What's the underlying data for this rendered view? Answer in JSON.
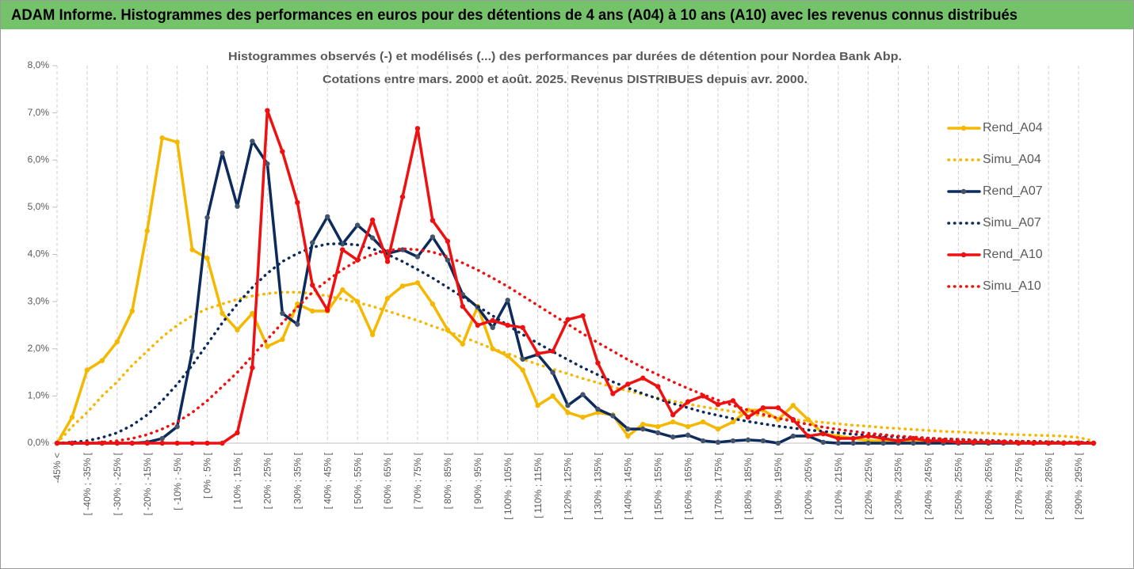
{
  "header": {
    "title": "ADAM Informe. Histogrammes des performances en euros pour des détentions de 4 ans (A04) à 10 ans (A10) avec les revenus connus distribués"
  },
  "chart_data": {
    "type": "line",
    "title": "Histogrammes observés (-) et modélisés (...) des performances par durées de détention pour Nordea Bank Abp.",
    "subtitle": "Cotations entre mars. 2000 et août. 2025. Revenus DISTRIBUES depuis avr. 2000.",
    "categories": [
      "-45% <",
      null,
      "[ -40% ; -35% [",
      null,
      "[ -30% ; -25% [",
      null,
      "[ -20% ; -15% [",
      null,
      "[ -10% ; -5% [",
      null,
      "[ 0% ; 5% [",
      null,
      "[ 10% ; 15% [",
      null,
      "[ 20% ; 25% [",
      null,
      "[ 30% ; 35% [",
      null,
      "[ 40% ; 45% [",
      null,
      "[ 50% ; 55% [",
      null,
      "[ 60% ; 65% [",
      null,
      "[ 70% ; 75% [",
      null,
      "[ 80% ; 85% [",
      null,
      "[ 90% ; 95% [",
      null,
      "[ 100% ; 105% [",
      null,
      "[ 110% ; 115% [",
      null,
      "[ 120% ; 125% [",
      null,
      "[ 130% ; 135% [",
      null,
      "[ 140% ; 145% [",
      null,
      "[ 150% ; 155% [",
      null,
      "[ 160% ; 165% [",
      null,
      "[ 170% ; 175% [",
      null,
      "[ 180% ; 185% [",
      null,
      "[ 190% ; 195% [",
      null,
      "[ 200% ; 205% [",
      null,
      "[ 210% ; 215% [",
      null,
      "[ 220% ; 225% [",
      null,
      "[ 230% ; 235% [",
      null,
      "[ 240% ; 245% [",
      null,
      "[ 250% ; 255% [",
      null,
      "[ 260% ; 265% [",
      null,
      "[ 270% ; 275% [",
      null,
      "[ 280% ; 285% [",
      null,
      "[ 290% ; 295% [",
      null
    ],
    "series": [
      {
        "name": "Rend_A04",
        "color": "#f5b800",
        "line_style": "solid",
        "markers": true,
        "values": [
          0,
          0.55,
          1.55,
          1.75,
          2.15,
          2.8,
          4.5,
          6.47,
          6.38,
          4.1,
          3.92,
          2.75,
          2.4,
          2.75,
          2.05,
          2.2,
          2.95,
          2.8,
          2.8,
          3.25,
          3.0,
          2.3,
          3.07,
          3.33,
          3.4,
          2.95,
          2.4,
          2.1,
          2.9,
          2.0,
          1.85,
          1.55,
          0.8,
          1.0,
          0.65,
          0.55,
          0.65,
          0.6,
          0.15,
          0.4,
          0.35,
          0.45,
          0.35,
          0.45,
          0.3,
          0.45,
          0.7,
          0.7,
          0.5,
          0.8,
          0.5,
          0.2,
          0.15,
          0.1,
          0.05,
          0.05,
          0.05,
          0.03,
          0.03,
          0.02,
          0.02,
          0.02,
          0.02,
          0.01,
          0.01,
          0.01,
          0.01,
          0.01,
          0.01,
          0
        ]
      },
      {
        "name": "Simu_A04",
        "color": "#f5b800",
        "line_style": "dotted",
        "markers": false,
        "values": [
          0,
          0.35,
          0.65,
          1.0,
          1.3,
          1.65,
          1.95,
          2.25,
          2.5,
          2.7,
          2.85,
          2.95,
          3.05,
          3.12,
          3.17,
          3.2,
          3.2,
          3.17,
          3.12,
          3.05,
          2.98,
          2.9,
          2.8,
          2.7,
          2.6,
          2.48,
          2.37,
          2.25,
          2.13,
          2.0,
          1.9,
          1.78,
          1.67,
          1.57,
          1.47,
          1.37,
          1.28,
          1.19,
          1.11,
          1.03,
          0.96,
          0.89,
          0.83,
          0.77,
          0.72,
          0.67,
          0.62,
          0.58,
          0.54,
          0.5,
          0.47,
          0.44,
          0.41,
          0.38,
          0.36,
          0.33,
          0.31,
          0.29,
          0.27,
          0.25,
          0.24,
          0.22,
          0.21,
          0.19,
          0.18,
          0.17,
          0.16,
          0.15,
          0.12,
          0.05
        ]
      },
      {
        "name": "Rend_A07",
        "color": "#0d2a5c",
        "line_style": "solid",
        "markers": true,
        "values": [
          0,
          0,
          0,
          0,
          0,
          0,
          0.02,
          0.1,
          0.35,
          1.95,
          4.78,
          6.15,
          5.02,
          6.4,
          5.92,
          2.75,
          2.52,
          4.25,
          4.8,
          4.22,
          4.62,
          4.35,
          4.02,
          4.1,
          3.95,
          4.37,
          3.88,
          3.15,
          2.88,
          2.45,
          3.03,
          1.78,
          1.88,
          1.5,
          0.8,
          1.03,
          0.72,
          0.58,
          0.3,
          0.3,
          0.22,
          0.13,
          0.17,
          0.05,
          0.02,
          0.05,
          0.07,
          0.05,
          0,
          0.15,
          0.15,
          0.02,
          0,
          0,
          0,
          0,
          0,
          0,
          0,
          0,
          0,
          0,
          0,
          0,
          0,
          0,
          0,
          0,
          0,
          0
        ]
      },
      {
        "name": "Simu_A07",
        "color": "#0d2a5c",
        "line_style": "dotted",
        "markers": false,
        "values": [
          0,
          0.02,
          0.05,
          0.12,
          0.22,
          0.38,
          0.6,
          0.9,
          1.25,
          1.65,
          2.1,
          2.55,
          2.95,
          3.3,
          3.6,
          3.85,
          4.02,
          4.15,
          4.22,
          4.23,
          4.2,
          4.12,
          4.0,
          3.85,
          3.68,
          3.5,
          3.3,
          3.1,
          2.9,
          2.7,
          2.5,
          2.3,
          2.12,
          1.94,
          1.77,
          1.6,
          1.45,
          1.3,
          1.17,
          1.05,
          0.94,
          0.84,
          0.75,
          0.66,
          0.59,
          0.52,
          0.46,
          0.41,
          0.36,
          0.32,
          0.28,
          0.25,
          0.22,
          0.19,
          0.17,
          0.15,
          0.13,
          0.11,
          0.1,
          0.09,
          0.08,
          0.07,
          0.06,
          0.05,
          0.04,
          0.04,
          0.03,
          0.03,
          0.02,
          0.02
        ]
      },
      {
        "name": "Rend_A10",
        "color": "#ee1111",
        "line_style": "solid",
        "markers": true,
        "values": [
          0,
          0,
          0,
          0,
          0,
          0,
          0,
          0,
          0,
          0,
          0,
          0,
          0.22,
          1.6,
          7.05,
          6.18,
          5.1,
          3.35,
          2.82,
          4.1,
          3.88,
          4.73,
          3.85,
          5.22,
          6.67,
          4.72,
          4.28,
          2.9,
          2.5,
          2.6,
          2.5,
          2.45,
          1.9,
          1.95,
          2.62,
          2.7,
          1.7,
          1.05,
          1.25,
          1.38,
          1.2,
          0.6,
          0.88,
          1.0,
          0.82,
          0.9,
          0.55,
          0.75,
          0.75,
          0.5,
          0.15,
          0.2,
          0.1,
          0.1,
          0.15,
          0.1,
          0.05,
          0.1,
          0.05,
          0.05,
          0.02,
          0.02,
          0.02,
          0.02,
          0,
          0,
          0,
          0,
          0,
          0
        ]
      },
      {
        "name": "Simu_A10",
        "color": "#ee1111",
        "line_style": "dotted",
        "markers": false,
        "values": [
          0,
          0,
          0,
          0.02,
          0.05,
          0.1,
          0.18,
          0.3,
          0.45,
          0.65,
          0.9,
          1.2,
          1.5,
          1.85,
          2.2,
          2.55,
          2.88,
          3.2,
          3.45,
          3.68,
          3.87,
          4.0,
          4.08,
          4.12,
          4.1,
          4.05,
          3.95,
          3.82,
          3.67,
          3.5,
          3.32,
          3.12,
          2.92,
          2.72,
          2.52,
          2.32,
          2.13,
          1.95,
          1.77,
          1.6,
          1.45,
          1.3,
          1.16,
          1.03,
          0.91,
          0.8,
          0.7,
          0.61,
          0.53,
          0.46,
          0.4,
          0.34,
          0.29,
          0.25,
          0.21,
          0.18,
          0.15,
          0.13,
          0.11,
          0.09,
          0.08,
          0.06,
          0.05,
          0.04,
          0.04,
          0.03,
          0.02,
          0.02,
          0.02,
          0.01
        ]
      }
    ],
    "ylim": [
      0,
      8
    ],
    "yticks": [
      {
        "value": 0,
        "label": "0,0%"
      },
      {
        "value": 1,
        "label": "1,0%"
      },
      {
        "value": 2,
        "label": "2,0%"
      },
      {
        "value": 3,
        "label": "3,0%"
      },
      {
        "value": 4,
        "label": "4,0%"
      },
      {
        "value": 5,
        "label": "5,0%"
      },
      {
        "value": 6,
        "label": "6,0%"
      },
      {
        "value": 7,
        "label": "7,0%"
      },
      {
        "value": 8,
        "label": "8,0%"
      }
    ],
    "grid": "x",
    "legend": "right"
  }
}
